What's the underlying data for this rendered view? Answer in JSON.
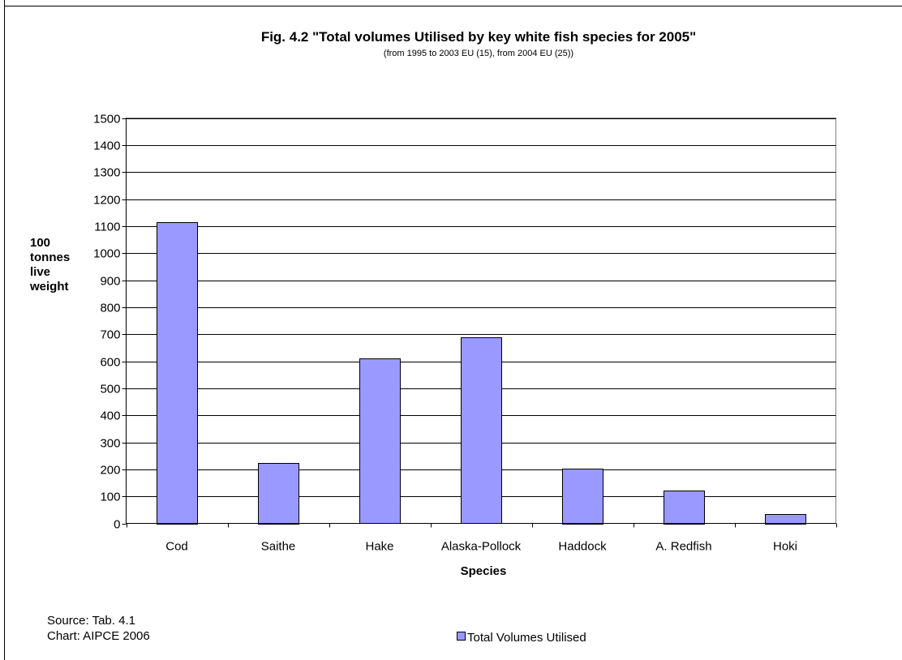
{
  "chart_data": {
    "type": "bar",
    "title": "Fig. 4.2 \"Total volumes Utilised by key white fish species for 2005\"",
    "subtitle": "(from 1995 to 2003 EU (15), from 2004 EU (25))",
    "xlabel": "Species",
    "ylabel_lines": [
      "100",
      "tonnes",
      "live",
      "weight"
    ],
    "categories": [
      "Cod",
      "Saithe",
      "Hake",
      "Alaska-Pollock",
      "Haddock",
      "A. Redfish",
      "Hoki"
    ],
    "series": [
      {
        "name": "Total Volumes Utilised",
        "values": [
          1115,
          225,
          610,
          688,
          203,
          122,
          35
        ],
        "color": "#9999ff"
      }
    ],
    "ylim": [
      0,
      1500
    ],
    "yticks": [
      "0",
      "100",
      "200",
      "300",
      "400",
      "500",
      "600",
      "700",
      "800",
      "900",
      "1000",
      "1100",
      "1200",
      "1300",
      "1400",
      "1500"
    ],
    "grid": true,
    "legend_position": "bottom-center"
  },
  "notes": {
    "source": "Source: Tab. 4.1",
    "chart_credit": "Chart: AIPCE 2006"
  }
}
